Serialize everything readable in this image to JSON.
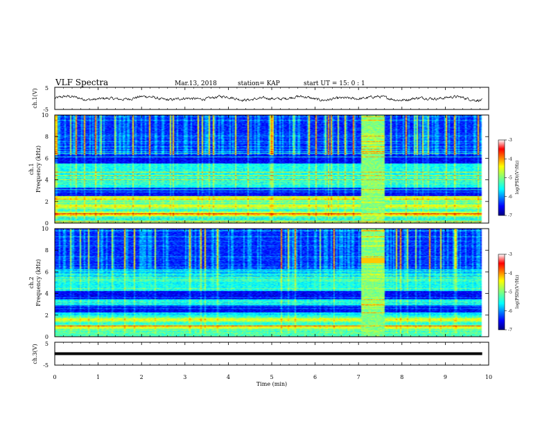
{
  "header": {
    "title": "VLF Spectra",
    "date": "Mar.13, 2018",
    "station": "station= KAP",
    "start_time": "start  UT =   15: 0   : 1"
  },
  "chart_data": [
    {
      "type": "line",
      "panel": "ch1-waveform",
      "ylabel": "ch.1(V)",
      "ylim": [
        -5,
        5
      ],
      "yticks": [
        "5",
        "-5"
      ],
      "x_range_min": [
        0,
        9.85
      ],
      "style": "noisy trace around 0 V, amplitude about ±1.5 V"
    },
    {
      "type": "heatmap",
      "panel": "ch1-spectrogram",
      "ylabel": [
        "ch.1",
        "Frequency (kHz)"
      ],
      "ylim": [
        0,
        10
      ],
      "yticks": [
        "0",
        "2",
        "4",
        "6",
        "8",
        "10"
      ],
      "colorbar": {
        "label": "log(PSD)(V²/Hz)",
        "range": [
          -7,
          -3
        ],
        "ticks": [
          "-3",
          "-4",
          "-5",
          "-6",
          "-7"
        ]
      },
      "features": {
        "strong_band_khz": [
          0.5,
          2.5
        ],
        "dark_bands_khz": [
          [
            2.5,
            3.3
          ],
          [
            5.5,
            6.3
          ]
        ],
        "broadband_burst_min": [
          7.05,
          7.6
        ]
      }
    },
    {
      "type": "heatmap",
      "panel": "ch2-spectrogram",
      "ylabel": [
        "ch.2",
        "Frequency (kHz)"
      ],
      "ylim": [
        0,
        10
      ],
      "yticks": [
        "0",
        "2",
        "4",
        "6",
        "8",
        "10"
      ],
      "colorbar": {
        "label": "log(PSD)(V²/Hz)",
        "range": [
          -7,
          -3
        ],
        "ticks": [
          "-3",
          "-4",
          "-5",
          "-6",
          "-7"
        ]
      },
      "features": {
        "strong_band_khz": [
          0.3,
          2.0
        ],
        "dark_bands_khz": [
          [
            2.2,
            3.0
          ],
          [
            3.4,
            4.2
          ]
        ],
        "broadband_burst_min": [
          7.05,
          7.6
        ]
      }
    },
    {
      "type": "line",
      "panel": "ch3-waveform",
      "ylabel": "ch.3(V)",
      "ylim": [
        -5,
        5
      ],
      "yticks": [
        "5",
        "-5"
      ],
      "value": 0,
      "style": "flat thick line at 0 V"
    }
  ],
  "xaxis": {
    "label": "Time (min)",
    "range": [
      0,
      10
    ],
    "ticks": [
      "0",
      "1",
      "2",
      "3",
      "4",
      "5",
      "6",
      "7",
      "8",
      "9",
      "10"
    ]
  }
}
